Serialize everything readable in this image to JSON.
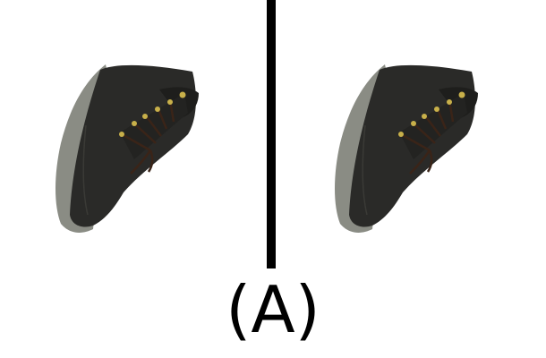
{
  "caption": "(A)",
  "panels": [
    {
      "icon": "boot-icon",
      "description_name": "left-boot"
    },
    {
      "icon": "boot-icon",
      "description_name": "right-boot"
    }
  ],
  "colors": {
    "boot_upper": "#2a2a28",
    "boot_sole": "#8a8c84",
    "laces": "#3a2418",
    "eyelets": "#c8b04a",
    "divider": "#000000",
    "background": "#ffffff"
  }
}
